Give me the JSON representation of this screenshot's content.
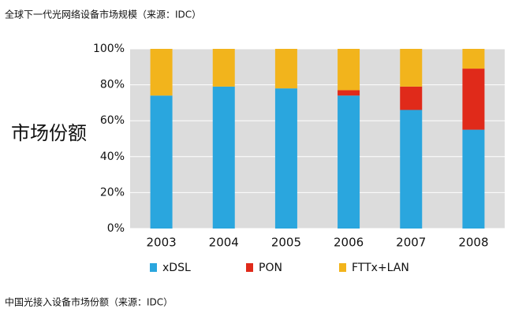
{
  "caption_top": "全球下一代光网络设备市场规模（来源：IDC）",
  "caption_bottom": "中国光接入设备市场份额（来源：IDC）",
  "chart_data": {
    "type": "stacked_bar",
    "y_label": "市场份额",
    "categories": [
      "2003",
      "2004",
      "2005",
      "2006",
      "2007",
      "2008"
    ],
    "series": [
      {
        "name": "xDSL",
        "color": "#2aa6de",
        "values": [
          74,
          79,
          78,
          74,
          66,
          55
        ]
      },
      {
        "name": "PON",
        "color": "#e02a1a",
        "values": [
          0,
          0,
          0,
          3,
          13,
          34
        ]
      },
      {
        "name": "FTTx+LAN",
        "color": "#f2b41c",
        "values": [
          26,
          21,
          22,
          23,
          21,
          11
        ]
      }
    ],
    "ylim": [
      0,
      100
    ],
    "yticks": [
      {
        "value": 0,
        "label": "0%"
      },
      {
        "value": 20,
        "label": "20%"
      },
      {
        "value": 40,
        "label": "40%"
      },
      {
        "value": 60,
        "label": "60%"
      },
      {
        "value": 80,
        "label": "80%"
      },
      {
        "value": 100,
        "label": "100%"
      }
    ],
    "grid": true,
    "legend": "bottom"
  }
}
